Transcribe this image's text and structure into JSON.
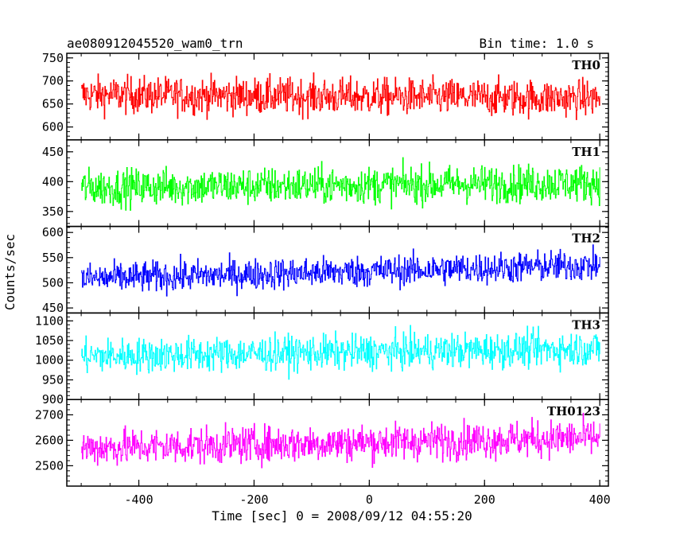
{
  "chart_data": {
    "type": "line",
    "title_left": "ae080912045520_wam0_trn",
    "title_right": "Bin time: 1.0 s",
    "xlabel": "Time [sec] 0 = 2008/09/12 04:55:20",
    "ylabel": "Counts/sec",
    "xlim": [
      -525,
      415
    ],
    "x_ticks": [
      -400,
      -200,
      0,
      200,
      400
    ],
    "bin_time": 1.0,
    "x_start": -500,
    "x_end": 400,
    "panels": [
      {
        "name": "TH0",
        "color": "#ff0000",
        "ylim": [
          572,
          760
        ],
        "y_ticks": [
          600,
          650,
          700,
          750
        ],
        "mean_start": 670,
        "mean_end": 662,
        "spread": 36
      },
      {
        "name": "TH1",
        "color": "#00ff00",
        "ylim": [
          325,
          470
        ],
        "y_ticks": [
          350,
          400,
          450
        ],
        "mean_start": 390,
        "mean_end": 398,
        "spread": 28
      },
      {
        "name": "TH2",
        "color": "#0000ff",
        "ylim": [
          440,
          612
        ],
        "y_ticks": [
          450,
          500,
          550,
          600
        ],
        "mean_start": 508,
        "mean_end": 535,
        "spread": 28
      },
      {
        "name": "TH3",
        "color": "#00ffff",
        "ylim": [
          900,
          1120
        ],
        "y_ticks": [
          900,
          950,
          1000,
          1050,
          1100
        ],
        "mean_start": 1010,
        "mean_end": 1030,
        "spread": 40
      },
      {
        "name": "TH0123",
        "color": "#ff00ff",
        "ylim": [
          2420,
          2760
        ],
        "y_ticks": [
          2500,
          2600,
          2700
        ],
        "mean_start": 2570,
        "mean_end": 2610,
        "spread": 65
      }
    ]
  }
}
